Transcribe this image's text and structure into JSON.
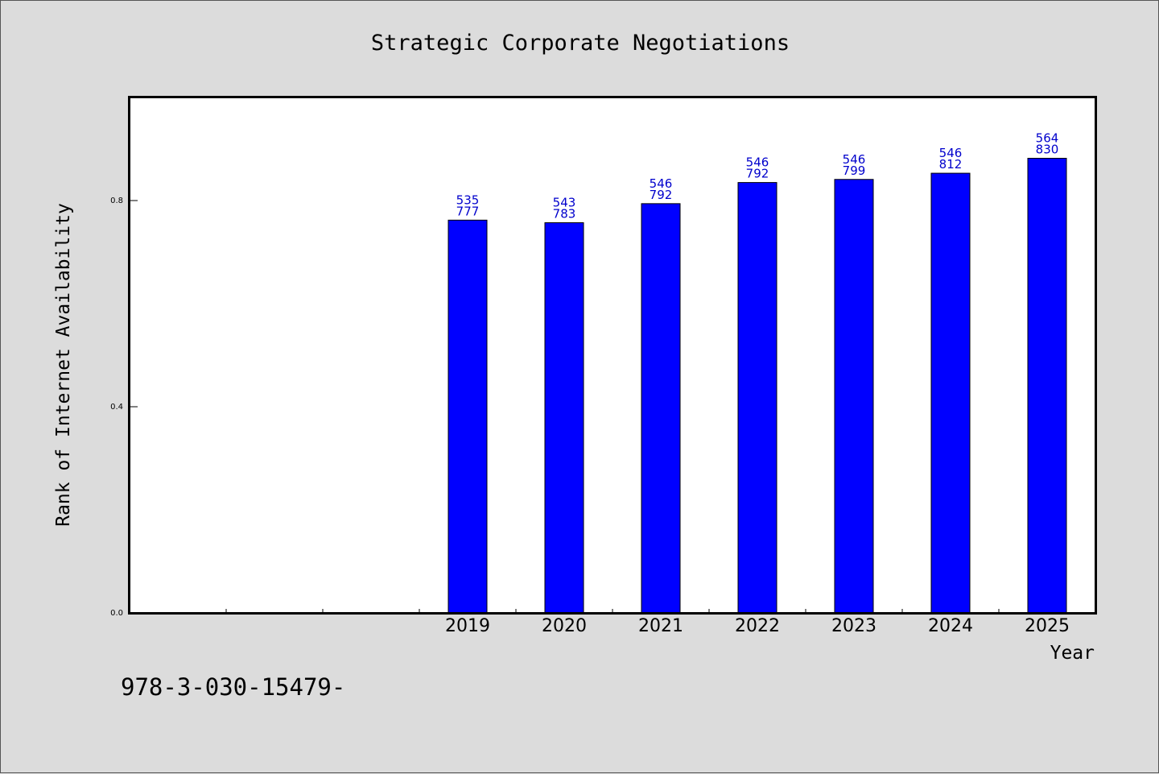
{
  "chart_data": {
    "type": "bar",
    "title": "Strategic Corporate Negotiations",
    "xlabel": "Year",
    "ylabel": "Rank of Internet Availability",
    "categories": [
      "",
      "",
      "",
      "2019",
      "2020",
      "2021",
      "2022",
      "2023",
      "2024",
      "2025"
    ],
    "values": [
      null,
      null,
      null,
      0.762,
      0.757,
      0.794,
      0.835,
      0.841,
      0.853,
      0.882
    ],
    "bar_labels": [
      null,
      null,
      null,
      [
        "535",
        "777"
      ],
      [
        "543",
        "783"
      ],
      [
        "546",
        "792"
      ],
      [
        "546",
        "792"
      ],
      [
        "546",
        "799"
      ],
      [
        "546",
        "812"
      ],
      [
        "564",
        "830"
      ]
    ],
    "yticks": [
      "0.0",
      "0.4",
      "0.8"
    ],
    "ylim": [
      0,
      1.0
    ],
    "grid": false,
    "bar_color": "#0000ff",
    "label_color": "#0000cc"
  },
  "footer_text": "978-3-030-15479-"
}
